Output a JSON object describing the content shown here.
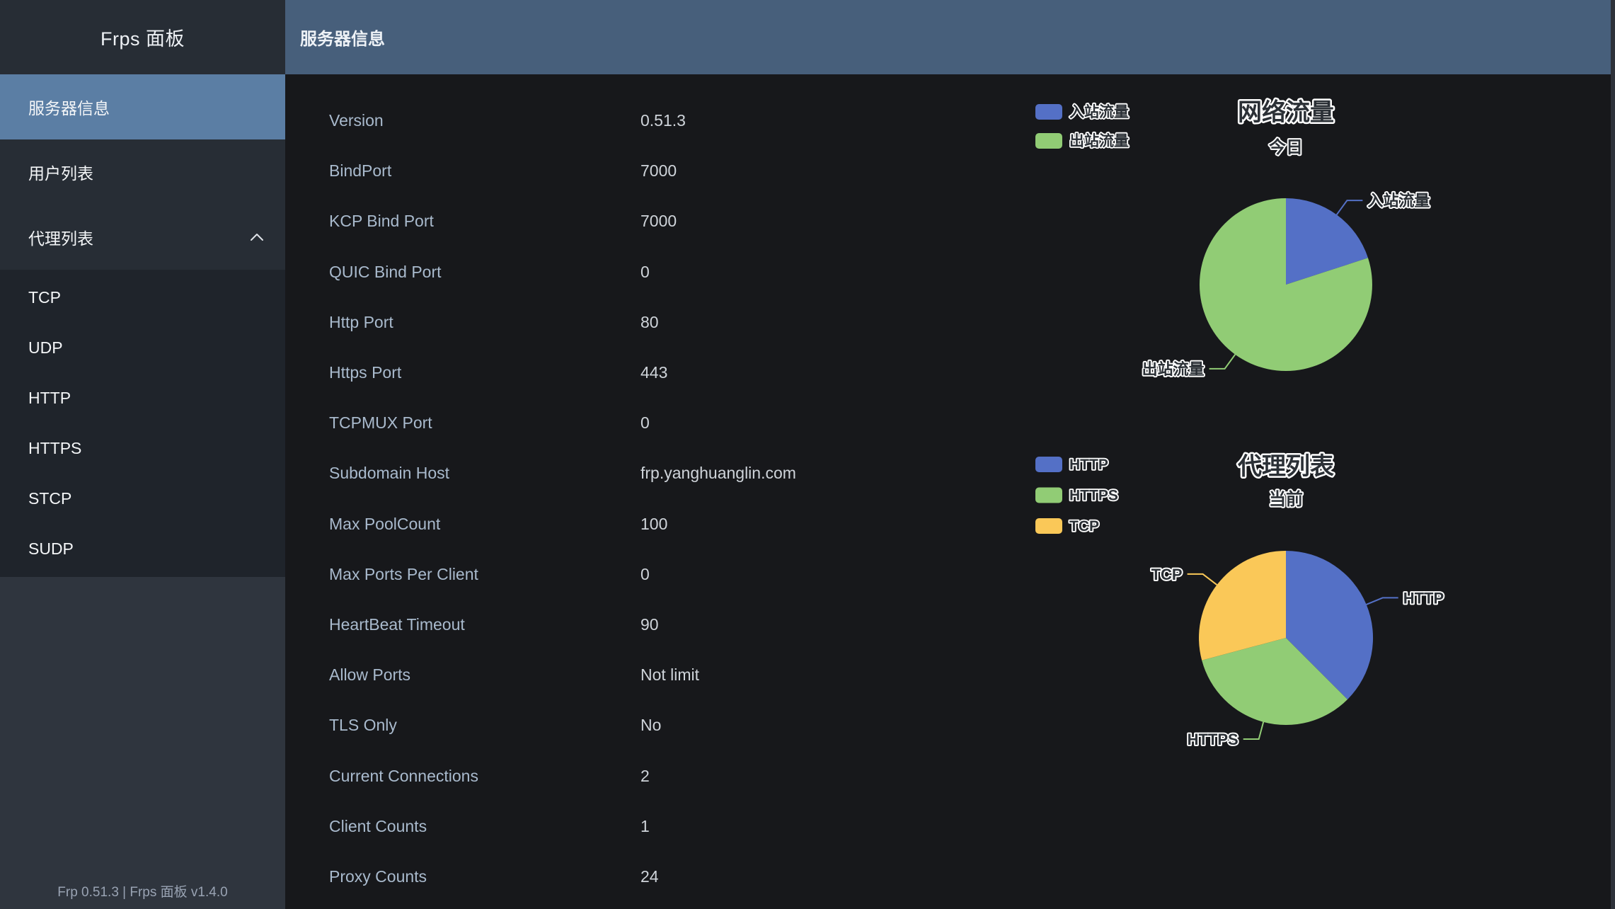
{
  "app": {
    "sidebar_title": "Frps 面板",
    "footer_text": "Frp 0.51.3 | Frps 面板 v1.4.0"
  },
  "header": {
    "title": "服务器信息"
  },
  "sidebar": {
    "items": [
      {
        "label": "服务器信息",
        "active": true,
        "expandable": false
      },
      {
        "label": "用户列表",
        "active": false,
        "expandable": false
      },
      {
        "label": "代理列表",
        "active": false,
        "expandable": true,
        "expanded": true
      }
    ],
    "subitems": [
      "TCP",
      "UDP",
      "HTTP",
      "HTTPS",
      "STCP",
      "SUDP"
    ]
  },
  "server_info": {
    "rows": [
      {
        "label": "Version",
        "value": "0.51.3"
      },
      {
        "label": "BindPort",
        "value": "7000"
      },
      {
        "label": "KCP Bind Port",
        "value": "7000"
      },
      {
        "label": "QUIC Bind Port",
        "value": "0"
      },
      {
        "label": "Http Port",
        "value": "80"
      },
      {
        "label": "Https Port",
        "value": "443"
      },
      {
        "label": "TCPMUX Port",
        "value": "0"
      },
      {
        "label": "Subdomain Host",
        "value": "frp.yanghuanglin.com"
      },
      {
        "label": "Max PoolCount",
        "value": "100"
      },
      {
        "label": "Max Ports Per Client",
        "value": "0"
      },
      {
        "label": "HeartBeat Timeout",
        "value": "90"
      },
      {
        "label": "Allow Ports",
        "value": "Not limit"
      },
      {
        "label": "TLS Only",
        "value": "No"
      },
      {
        "label": "Current Connections",
        "value": "2"
      },
      {
        "label": "Client Counts",
        "value": "1"
      },
      {
        "label": "Proxy Counts",
        "value": "24"
      }
    ]
  },
  "chart_data": [
    {
      "type": "pie",
      "title": "网络流量",
      "subtitle": "今日",
      "legend_position": "left-top",
      "value_kind": "estimated_percent",
      "slices": [
        {
          "name": "入站流量",
          "value": 20,
          "color": "#5470c6"
        },
        {
          "name": "出站流量",
          "value": 80,
          "color": "#91cc75"
        }
      ]
    },
    {
      "type": "pie",
      "title": "代理列表",
      "subtitle": "当前",
      "legend_position": "left-top",
      "value_kind": "count",
      "slices": [
        {
          "name": "HTTP",
          "value": 9,
          "color": "#5470c6"
        },
        {
          "name": "HTTPS",
          "value": 8,
          "color": "#91cc75"
        },
        {
          "name": "TCP",
          "value": 7,
          "color": "#fac858"
        }
      ]
    }
  ],
  "colors": {
    "header_bg": "#475f7b",
    "sidebar_bg": "#2f353e",
    "menu_bg": "#272d35",
    "submenu_bg": "#1f242b",
    "active_item_bg": "#5b7ea4",
    "content_bg": "#17181b",
    "label_text": "#a9bacd",
    "value_text": "#cfd4da",
    "palette": [
      "#5470c6",
      "#91cc75",
      "#fac858"
    ]
  }
}
